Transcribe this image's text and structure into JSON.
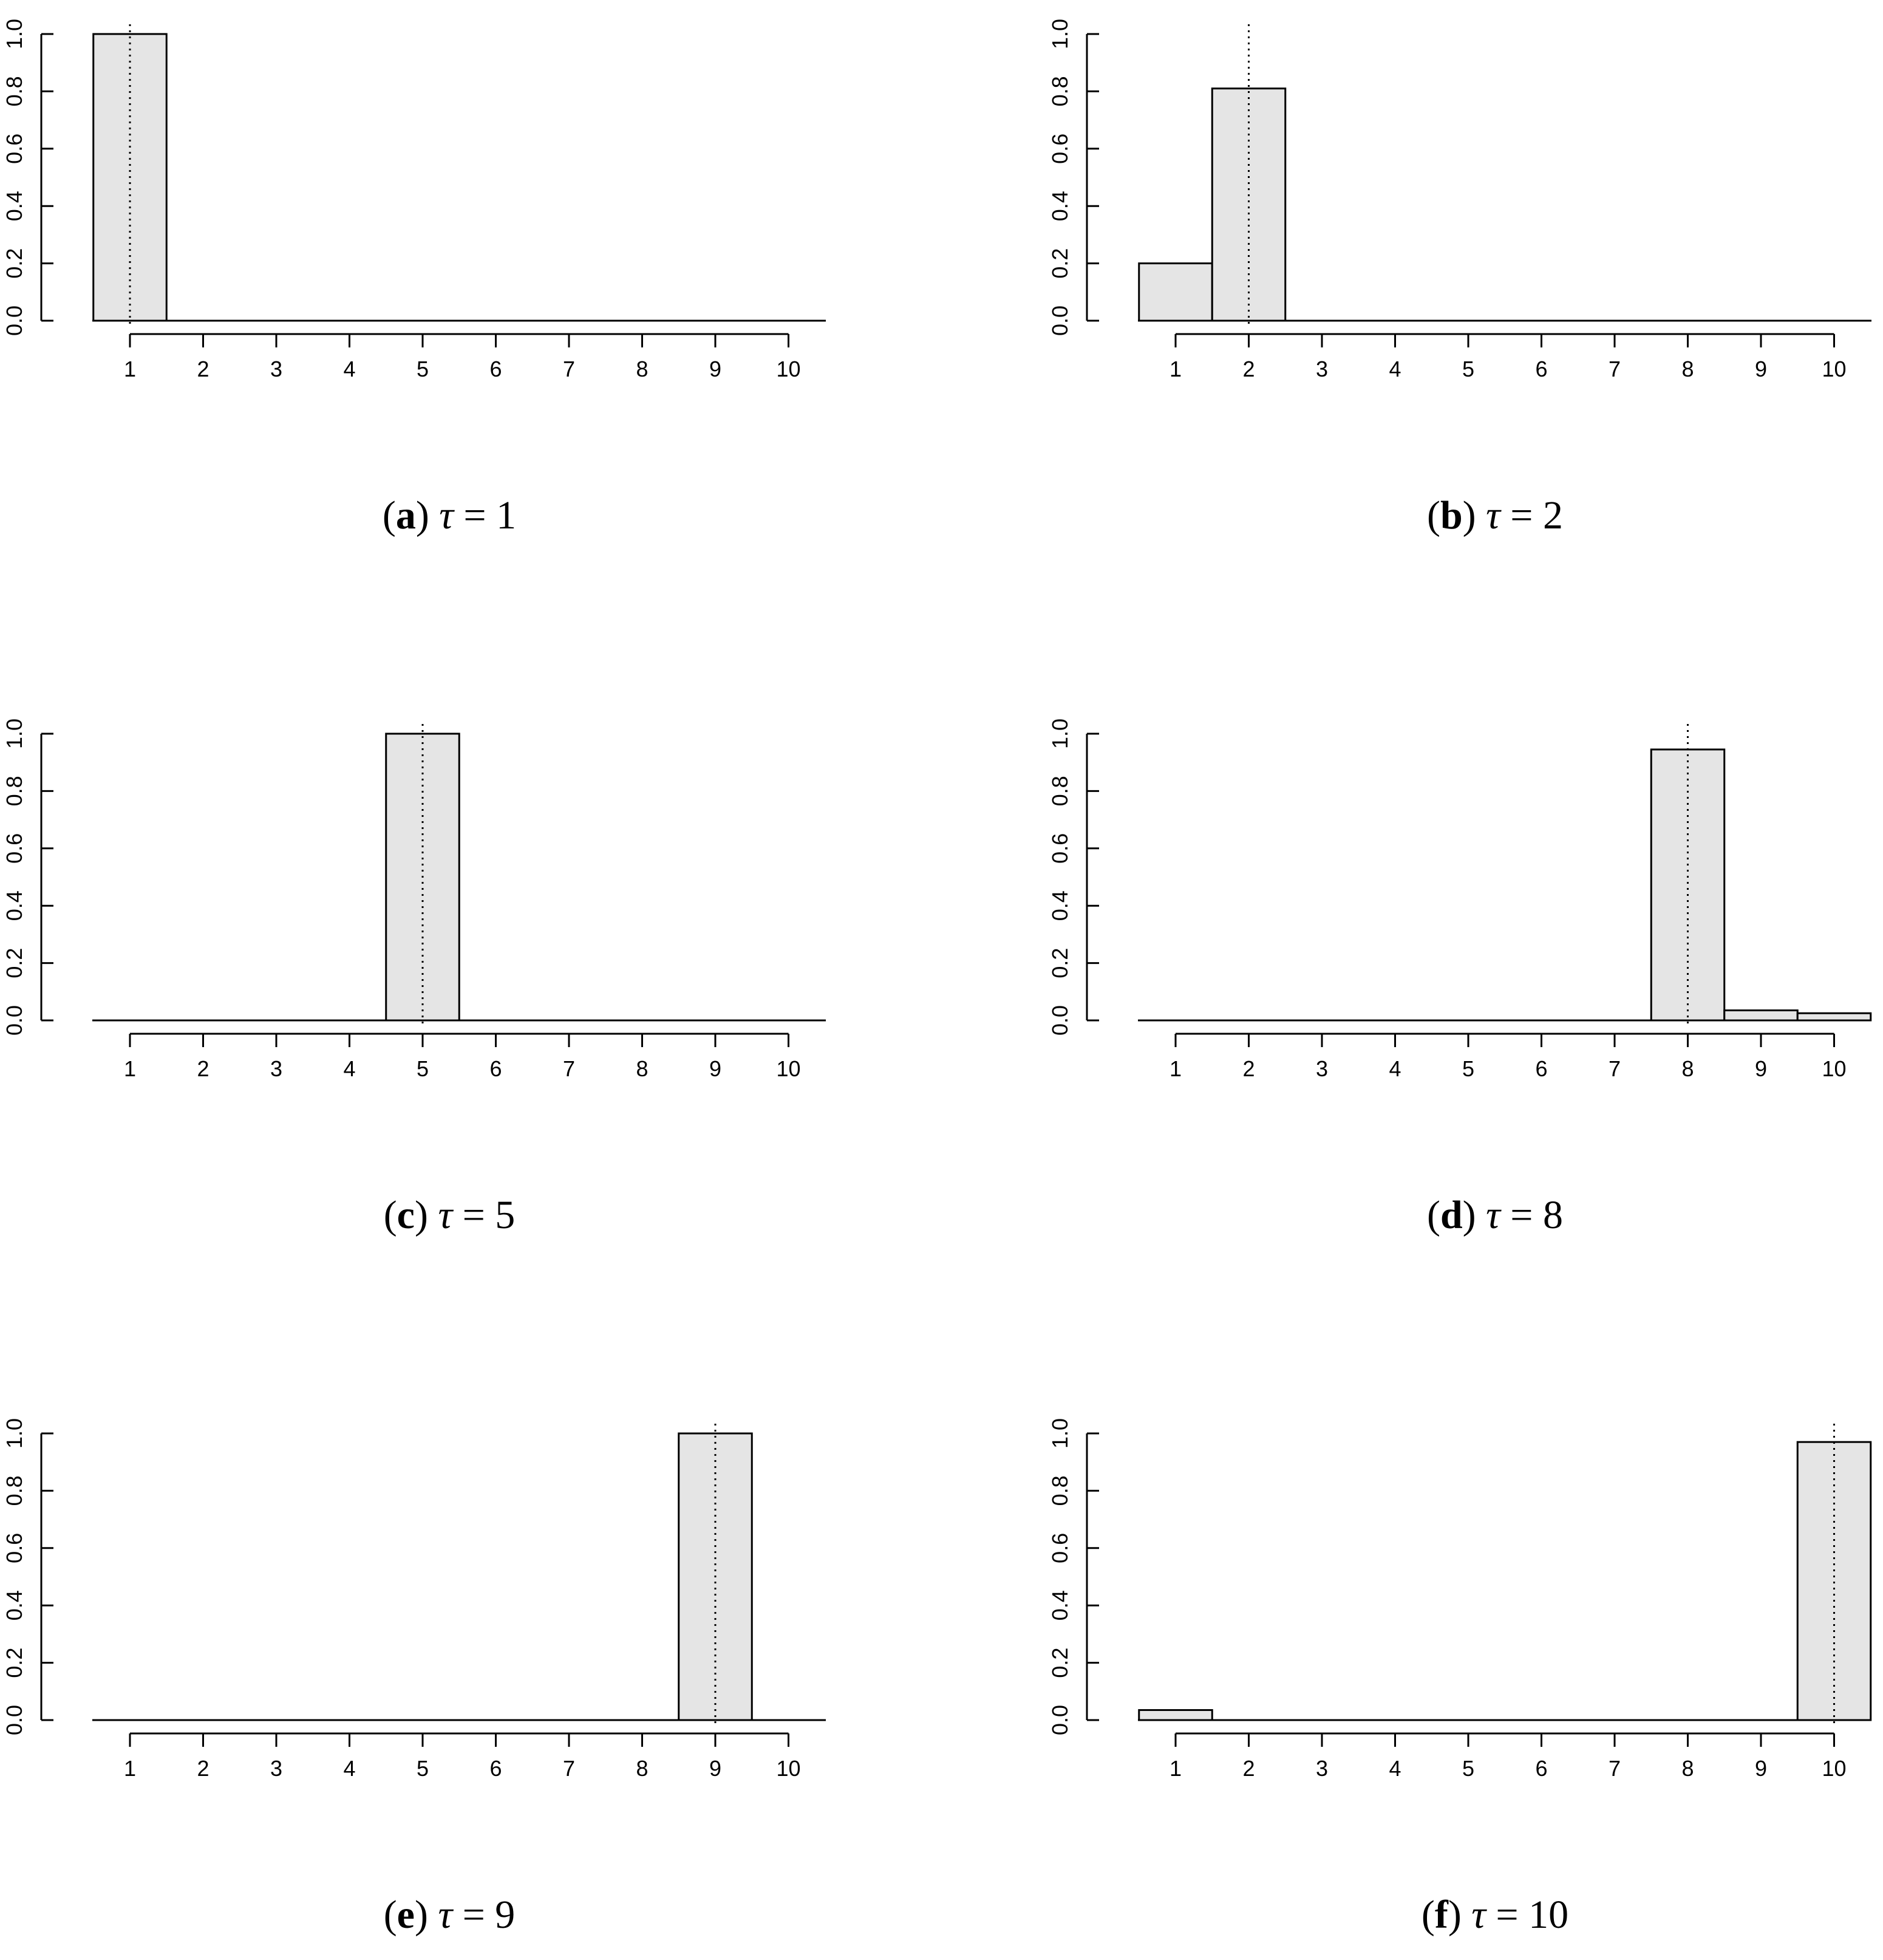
{
  "chart_data": [
    {
      "type": "bar",
      "panel": "a",
      "caption": {
        "tag": "a",
        "symbol": "τ",
        "value": "1"
      },
      "categories": [
        "1",
        "2",
        "3",
        "4",
        "5",
        "6",
        "7",
        "8",
        "9",
        "10"
      ],
      "values": [
        1.0,
        0,
        0,
        0,
        0,
        0,
        0,
        0,
        0,
        0
      ],
      "marker_x": 1,
      "ylim": [
        0,
        1
      ],
      "yticks": [
        "0.0",
        "0.2",
        "0.4",
        "0.6",
        "0.8",
        "1.0"
      ],
      "title": "",
      "xlabel": "",
      "ylabel": ""
    },
    {
      "type": "bar",
      "panel": "b",
      "caption": {
        "tag": "b",
        "symbol": "τ",
        "value": "2"
      },
      "categories": [
        "1",
        "2",
        "3",
        "4",
        "5",
        "6",
        "7",
        "8",
        "9",
        "10"
      ],
      "values": [
        0.2,
        0.81,
        0,
        0,
        0,
        0,
        0,
        0,
        0,
        0
      ],
      "marker_x": 2,
      "ylim": [
        0,
        1
      ],
      "yticks": [
        "0.0",
        "0.2",
        "0.4",
        "0.6",
        "0.8",
        "1.0"
      ],
      "title": "",
      "xlabel": "",
      "ylabel": ""
    },
    {
      "type": "bar",
      "panel": "c",
      "caption": {
        "tag": "c",
        "symbol": "τ",
        "value": "5"
      },
      "categories": [
        "1",
        "2",
        "3",
        "4",
        "5",
        "6",
        "7",
        "8",
        "9",
        "10"
      ],
      "values": [
        0,
        0,
        0,
        0,
        1.0,
        0,
        0,
        0,
        0,
        0
      ],
      "marker_x": 5,
      "ylim": [
        0,
        1
      ],
      "yticks": [
        "0.0",
        "0.2",
        "0.4",
        "0.6",
        "0.8",
        "1.0"
      ],
      "title": "",
      "xlabel": "",
      "ylabel": ""
    },
    {
      "type": "bar",
      "panel": "d",
      "caption": {
        "tag": "d",
        "symbol": "τ",
        "value": "8"
      },
      "categories": [
        "1",
        "2",
        "3",
        "4",
        "5",
        "6",
        "7",
        "8",
        "9",
        "10"
      ],
      "values": [
        0,
        0,
        0,
        0,
        0,
        0,
        0,
        0.945,
        0.035,
        0.025
      ],
      "marker_x": 8,
      "ylim": [
        0,
        1
      ],
      "yticks": [
        "0.0",
        "0.2",
        "0.4",
        "0.6",
        "0.8",
        "1.0"
      ],
      "title": "",
      "xlabel": "",
      "ylabel": ""
    },
    {
      "type": "bar",
      "panel": "e",
      "caption": {
        "tag": "e",
        "symbol": "τ",
        "value": "9"
      },
      "categories": [
        "1",
        "2",
        "3",
        "4",
        "5",
        "6",
        "7",
        "8",
        "9",
        "10"
      ],
      "values": [
        0,
        0,
        0,
        0,
        0,
        0,
        0,
        0,
        1.0,
        0
      ],
      "marker_x": 9,
      "ylim": [
        0,
        1
      ],
      "yticks": [
        "0.0",
        "0.2",
        "0.4",
        "0.6",
        "0.8",
        "1.0"
      ],
      "title": "",
      "xlabel": "",
      "ylabel": ""
    },
    {
      "type": "bar",
      "panel": "f",
      "caption": {
        "tag": "f",
        "symbol": "τ",
        "value": "10"
      },
      "categories": [
        "1",
        "2",
        "3",
        "4",
        "5",
        "6",
        "7",
        "8",
        "9",
        "10"
      ],
      "values": [
        0.035,
        0,
        0,
        0,
        0,
        0,
        0,
        0,
        0,
        0.97
      ],
      "marker_x": 10,
      "ylim": [
        0,
        1
      ],
      "yticks": [
        "0.0",
        "0.2",
        "0.4",
        "0.6",
        "0.8",
        "1.0"
      ],
      "title": "",
      "xlabel": "",
      "ylabel": ""
    }
  ],
  "colors": {
    "bar_fill": "#e5e5e5",
    "stroke": "#000000",
    "background": "#ffffff"
  }
}
